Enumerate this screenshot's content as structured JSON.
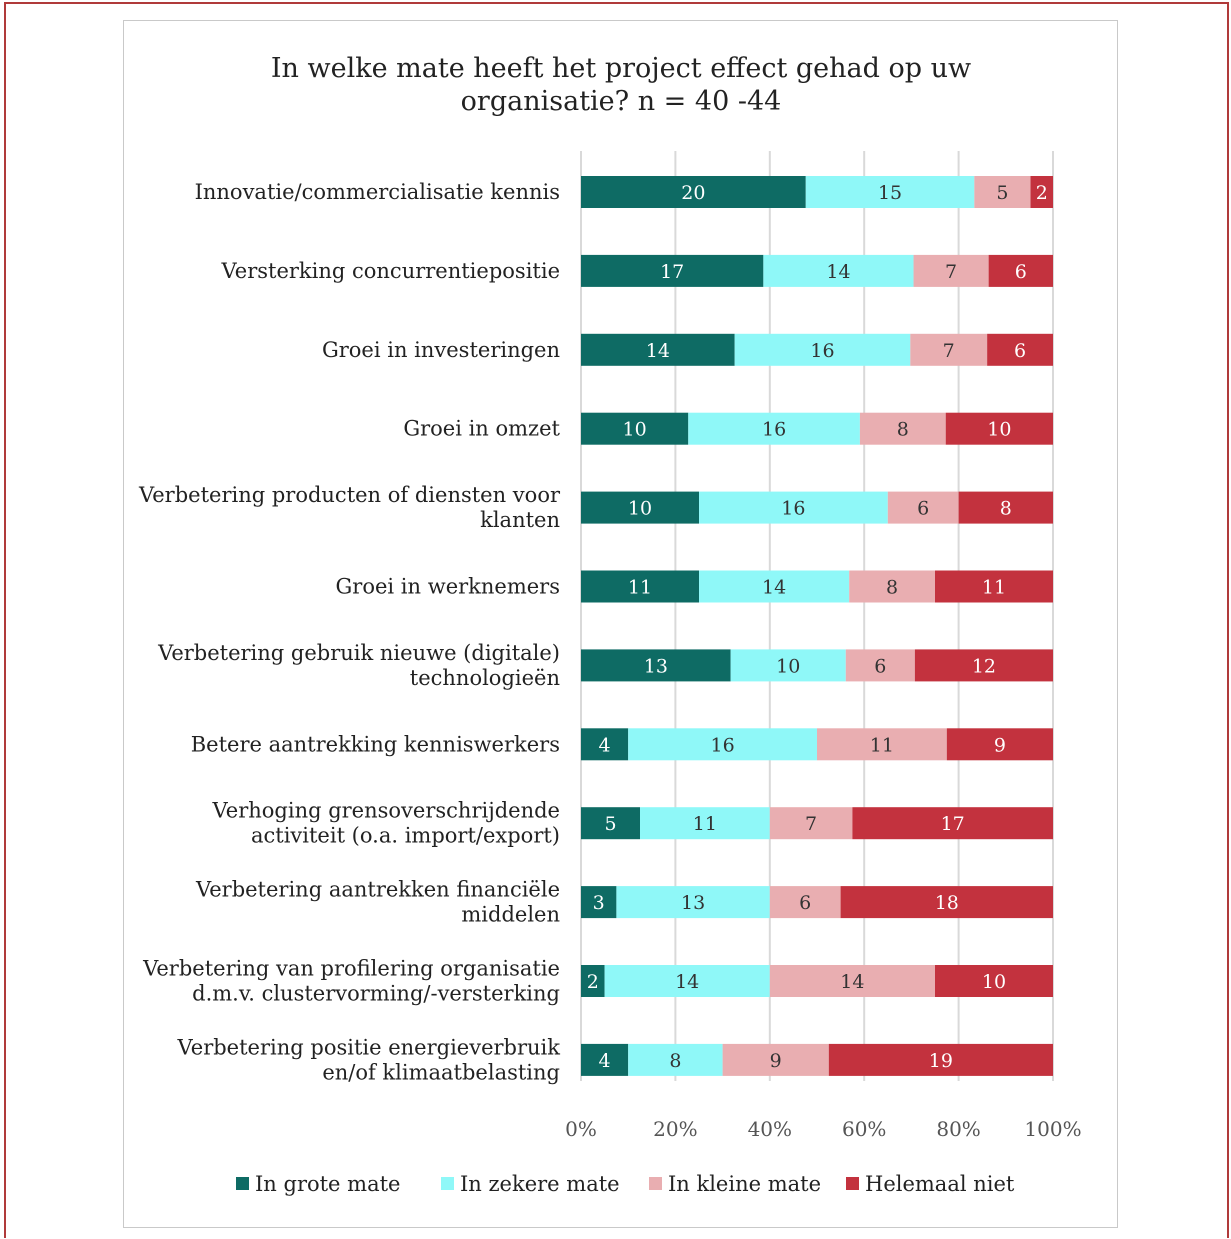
{
  "chart_data": {
    "type": "bar",
    "orientation": "horizontal",
    "stacked": "percent",
    "title": "In welke mate heeft het project effect gehad op uw organisatie?  n = 40 -44",
    "title_lines": [
      "In welke mate heeft het project effect gehad op uw",
      "organisatie?  n = 40 -44"
    ],
    "categories": [
      [
        "Innovatie/commercialisatie kennis"
      ],
      [
        "Versterking concurrentiepositie"
      ],
      [
        "Groei in investeringen"
      ],
      [
        "Groei in omzet"
      ],
      [
        "Verbetering producten of diensten voor",
        "klanten"
      ],
      [
        "Groei in werknemers"
      ],
      [
        "Verbetering gebruik nieuwe (digitale)",
        "technologieën"
      ],
      [
        "Betere aantrekking kenniswerkers"
      ],
      [
        "Verhoging grensoverschrijdende",
        "activiteit (o.a. import/export)"
      ],
      [
        "Verbetering aantrekken financiële",
        "middelen"
      ],
      [
        "Verbetering van profilering organisatie",
        "d.m.v. clustervorming/-versterking"
      ],
      [
        "Verbetering positie energieverbruik",
        "en/of klimaatbelasting"
      ]
    ],
    "series": [
      {
        "name": "In grote mate",
        "color": "#0e6b64",
        "label_color": "#ffffff",
        "values": [
          20,
          17,
          14,
          10,
          10,
          11,
          13,
          4,
          5,
          3,
          2,
          4
        ]
      },
      {
        "name": "In zekere mate",
        "color": "#8ff8f8",
        "label_color": "#333333",
        "values": [
          15,
          14,
          16,
          16,
          16,
          14,
          10,
          16,
          11,
          13,
          14,
          8
        ]
      },
      {
        "name": "In kleine mate",
        "color": "#e9aeb1",
        "label_color": "#333333",
        "values": [
          5,
          7,
          7,
          8,
          6,
          8,
          6,
          11,
          7,
          6,
          14,
          9
        ]
      },
      {
        "name": "Helemaal niet",
        "color": "#c3323e",
        "label_color": "#ffffff",
        "values": [
          2,
          6,
          6,
          10,
          8,
          11,
          12,
          9,
          17,
          18,
          10,
          19
        ]
      }
    ],
    "x_ticks": [
      "0%",
      "20%",
      "40%",
      "60%",
      "80%",
      "100%"
    ],
    "xlim": [
      0,
      100
    ],
    "grid": true,
    "legend_position": "bottom"
  }
}
